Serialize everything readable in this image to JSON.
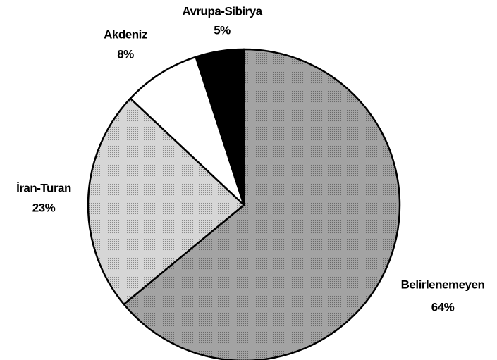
{
  "chart_data": {
    "type": "pie",
    "categories": [
      "Belirlenemeyen",
      "İran-Turan",
      "Akdeniz",
      "Avrupa-Sibirya"
    ],
    "values": [
      64,
      23,
      8,
      5
    ],
    "value_labels": [
      "64%",
      "23%",
      "8%",
      "5%"
    ],
    "colors": [
      "#a3a3a3",
      "#d6d6d6",
      "#ffffff",
      "#000000"
    ]
  }
}
